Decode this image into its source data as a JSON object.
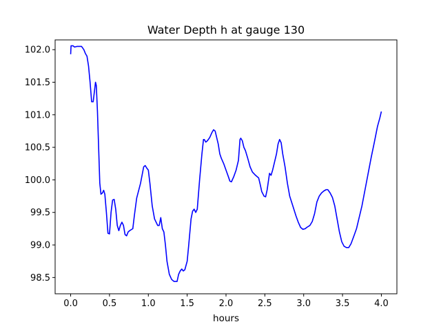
{
  "chart_data": {
    "type": "line",
    "title": "Water Depth h at gauge 130",
    "xlabel": "hours",
    "ylabel": "",
    "xlim": [
      -0.2,
      4.2
    ],
    "ylim": [
      98.25,
      102.15
    ],
    "grid": false,
    "legend": "none",
    "xticks": [
      0.0,
      0.5,
      1.0,
      1.5,
      2.0,
      2.5,
      3.0,
      3.5,
      4.0
    ],
    "xtick_labels": [
      "0.0",
      "0.5",
      "1.0",
      "1.5",
      "2.0",
      "2.5",
      "3.0",
      "3.5",
      "4.0"
    ],
    "yticks": [
      98.5,
      99.0,
      99.5,
      100.0,
      100.5,
      101.0,
      101.5,
      102.0
    ],
    "ytick_labels": [
      "98.5",
      "99.0",
      "99.5",
      "100.0",
      "100.5",
      "101.0",
      "101.5",
      "102.0"
    ],
    "series": [
      {
        "color": "#0000ff",
        "points": [
          [
            0.0,
            101.93
          ],
          [
            0.005,
            102.06
          ],
          [
            0.03,
            102.06
          ],
          [
            0.05,
            102.04
          ],
          [
            0.08,
            102.05
          ],
          [
            0.1,
            102.05
          ],
          [
            0.14,
            102.05
          ],
          [
            0.17,
            102.0
          ],
          [
            0.19,
            101.94
          ],
          [
            0.21,
            101.9
          ],
          [
            0.23,
            101.75
          ],
          [
            0.25,
            101.5
          ],
          [
            0.27,
            101.2
          ],
          [
            0.29,
            101.2
          ],
          [
            0.31,
            101.4
          ],
          [
            0.32,
            101.5
          ],
          [
            0.33,
            101.45
          ],
          [
            0.345,
            101.05
          ],
          [
            0.36,
            100.5
          ],
          [
            0.375,
            99.95
          ],
          [
            0.39,
            99.78
          ],
          [
            0.41,
            99.8
          ],
          [
            0.425,
            99.84
          ],
          [
            0.44,
            99.78
          ],
          [
            0.46,
            99.5
          ],
          [
            0.48,
            99.18
          ],
          [
            0.5,
            99.17
          ],
          [
            0.52,
            99.5
          ],
          [
            0.54,
            99.69
          ],
          [
            0.56,
            99.7
          ],
          [
            0.58,
            99.55
          ],
          [
            0.6,
            99.3
          ],
          [
            0.62,
            99.22
          ],
          [
            0.64,
            99.3
          ],
          [
            0.66,
            99.35
          ],
          [
            0.68,
            99.3
          ],
          [
            0.7,
            99.16
          ],
          [
            0.72,
            99.14
          ],
          [
            0.74,
            99.2
          ],
          [
            0.76,
            99.22
          ],
          [
            0.8,
            99.25
          ],
          [
            0.82,
            99.45
          ],
          [
            0.85,
            99.72
          ],
          [
            0.9,
            99.95
          ],
          [
            0.94,
            100.2
          ],
          [
            0.96,
            100.22
          ],
          [
            0.98,
            100.18
          ],
          [
            1.0,
            100.15
          ],
          [
            1.02,
            99.95
          ],
          [
            1.05,
            99.6
          ],
          [
            1.08,
            99.4
          ],
          [
            1.12,
            99.3
          ],
          [
            1.14,
            99.3
          ],
          [
            1.16,
            99.42
          ],
          [
            1.18,
            99.25
          ],
          [
            1.2,
            99.2
          ],
          [
            1.22,
            99.0
          ],
          [
            1.24,
            98.75
          ],
          [
            1.27,
            98.55
          ],
          [
            1.3,
            98.47
          ],
          [
            1.33,
            98.44
          ],
          [
            1.37,
            98.44
          ],
          [
            1.39,
            98.55
          ],
          [
            1.41,
            98.6
          ],
          [
            1.43,
            98.63
          ],
          [
            1.45,
            98.6
          ],
          [
            1.47,
            98.62
          ],
          [
            1.5,
            98.75
          ],
          [
            1.52,
            99.0
          ],
          [
            1.55,
            99.4
          ],
          [
            1.57,
            99.52
          ],
          [
            1.59,
            99.55
          ],
          [
            1.61,
            99.5
          ],
          [
            1.63,
            99.55
          ],
          [
            1.66,
            100.0
          ],
          [
            1.69,
            100.4
          ],
          [
            1.71,
            100.62
          ],
          [
            1.72,
            100.62
          ],
          [
            1.74,
            100.58
          ],
          [
            1.76,
            100.6
          ],
          [
            1.79,
            100.65
          ],
          [
            1.82,
            100.73
          ],
          [
            1.84,
            100.77
          ],
          [
            1.86,
            100.75
          ],
          [
            1.88,
            100.65
          ],
          [
            1.9,
            100.55
          ],
          [
            1.92,
            100.4
          ],
          [
            1.94,
            100.33
          ],
          [
            1.97,
            100.25
          ],
          [
            2.0,
            100.15
          ],
          [
            2.03,
            100.05
          ],
          [
            2.05,
            99.98
          ],
          [
            2.07,
            99.97
          ],
          [
            2.1,
            100.05
          ],
          [
            2.13,
            100.15
          ],
          [
            2.16,
            100.3
          ],
          [
            2.18,
            100.62
          ],
          [
            2.19,
            100.64
          ],
          [
            2.21,
            100.6
          ],
          [
            2.23,
            100.5
          ],
          [
            2.25,
            100.45
          ],
          [
            2.28,
            100.33
          ],
          [
            2.31,
            100.2
          ],
          [
            2.34,
            100.12
          ],
          [
            2.38,
            100.07
          ],
          [
            2.42,
            100.03
          ],
          [
            2.44,
            99.93
          ],
          [
            2.46,
            99.82
          ],
          [
            2.49,
            99.75
          ],
          [
            2.51,
            99.74
          ],
          [
            2.53,
            99.85
          ],
          [
            2.56,
            100.1
          ],
          [
            2.58,
            100.07
          ],
          [
            2.6,
            100.15
          ],
          [
            2.62,
            100.25
          ],
          [
            2.65,
            100.4
          ],
          [
            2.67,
            100.55
          ],
          [
            2.69,
            100.62
          ],
          [
            2.71,
            100.57
          ],
          [
            2.73,
            100.4
          ],
          [
            2.76,
            100.2
          ],
          [
            2.79,
            99.95
          ],
          [
            2.82,
            99.75
          ],
          [
            2.86,
            99.6
          ],
          [
            2.9,
            99.45
          ],
          [
            2.93,
            99.35
          ],
          [
            2.96,
            99.27
          ],
          [
            2.99,
            99.24
          ],
          [
            3.02,
            99.25
          ],
          [
            3.04,
            99.27
          ],
          [
            3.08,
            99.3
          ],
          [
            3.11,
            99.36
          ],
          [
            3.14,
            99.48
          ],
          [
            3.17,
            99.66
          ],
          [
            3.2,
            99.75
          ],
          [
            3.23,
            99.8
          ],
          [
            3.26,
            99.83
          ],
          [
            3.29,
            99.85
          ],
          [
            3.31,
            99.85
          ],
          [
            3.34,
            99.8
          ],
          [
            3.37,
            99.73
          ],
          [
            3.4,
            99.6
          ],
          [
            3.43,
            99.4
          ],
          [
            3.46,
            99.2
          ],
          [
            3.49,
            99.05
          ],
          [
            3.52,
            98.98
          ],
          [
            3.55,
            98.96
          ],
          [
            3.58,
            98.96
          ],
          [
            3.61,
            99.02
          ],
          [
            3.65,
            99.15
          ],
          [
            3.68,
            99.25
          ],
          [
            3.71,
            99.4
          ],
          [
            3.75,
            99.6
          ],
          [
            3.79,
            99.85
          ],
          [
            3.83,
            100.1
          ],
          [
            3.87,
            100.35
          ],
          [
            3.91,
            100.58
          ],
          [
            3.95,
            100.82
          ],
          [
            3.98,
            100.95
          ],
          [
            4.0,
            101.05
          ]
        ]
      }
    ]
  }
}
